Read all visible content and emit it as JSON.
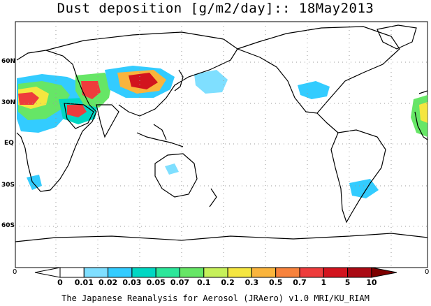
{
  "title": "Dust deposition [g/m2/day]:: 18May2013",
  "credit": "The Japanese Reanalysis for Aerosol (JRAero) v1.0 MRI/KU_RIAM",
  "lat_labels": [
    "60N",
    "30N",
    "EQ",
    "30S",
    "60S"
  ],
  "corner_labels": {
    "left": "0",
    "right": "0"
  },
  "colorbar": {
    "ticks": [
      "0",
      "0.01",
      "0.02",
      "0.03",
      "0.05",
      "0.07",
      "0.1",
      "0.2",
      "0.3",
      "0.5",
      "0.7",
      "1",
      "5",
      "10"
    ],
    "colors": [
      "#ffffff",
      "#ffffff",
      "#7fdfff",
      "#33ccff",
      "#00d7c3",
      "#2ce69a",
      "#66e666",
      "#c6f05a",
      "#f5e640",
      "#fab43c",
      "#f7823c",
      "#ee3c3c",
      "#d2141e",
      "#aa0a14",
      "#7d0000"
    ]
  },
  "colors": {
    "land_outline": "#000000",
    "grid": "#999999",
    "background": "#ffffff"
  }
}
